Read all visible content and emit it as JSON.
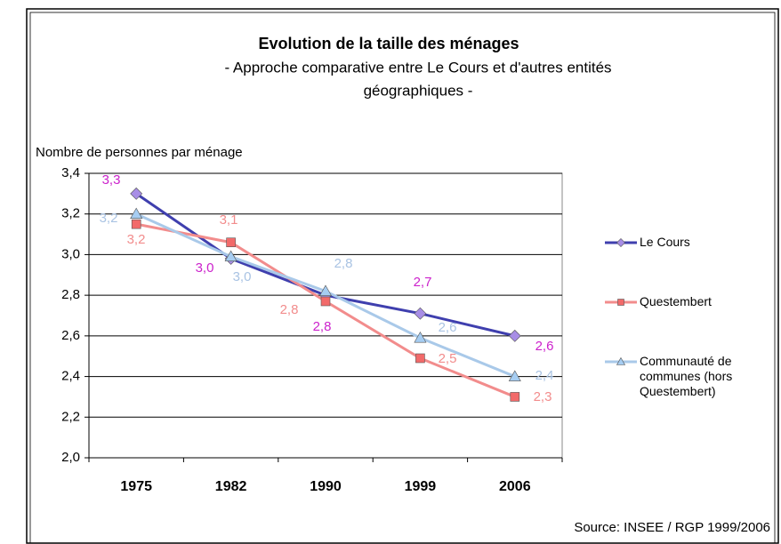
{
  "chart_data": {
    "type": "line",
    "title": "Evolution de la taille des ménages",
    "subtitle": [
      "- Approche comparative entre Le Cours et d'autres entités",
      "géographiques -"
    ],
    "y_label": "Nombre de personnes par ménage",
    "source": "Source: INSEE / RGP 1999/2006",
    "categories": [
      "1975",
      "1982",
      "1990",
      "1999",
      "2006"
    ],
    "ylim": [
      2.0,
      3.4
    ],
    "yticks": [
      {
        "value": 2.0,
        "label": "2,0"
      },
      {
        "value": 2.2,
        "label": "2,2"
      },
      {
        "value": 2.4,
        "label": "2,4"
      },
      {
        "value": 2.6,
        "label": "2,6"
      },
      {
        "value": 2.8,
        "label": "2,8"
      },
      {
        "value": 3.0,
        "label": "3,0"
      },
      {
        "value": 3.2,
        "label": "3,2"
      },
      {
        "value": 3.4,
        "label": "3,4"
      }
    ],
    "grid": true,
    "legend": "right",
    "series": [
      {
        "name": "Le Cours",
        "color": "#3f3fae",
        "marker": "diamond",
        "marker_color": "#a88ee6",
        "label_color": "#cc22cc",
        "values": [
          3.3,
          2.98,
          2.8,
          2.71,
          2.6
        ],
        "value_labels": [
          "3,3",
          "3,0",
          "2,8",
          "2,7",
          "2,6"
        ]
      },
      {
        "name": "Questembert",
        "color": "#f28c8c",
        "marker": "square",
        "marker_color": "#f26a6a",
        "label_color": "#f28c8c",
        "values": [
          3.15,
          3.06,
          2.77,
          2.49,
          2.3
        ],
        "value_labels": [
          "3,2",
          "3,1",
          "2,8",
          "2,5",
          "2,3"
        ]
      },
      {
        "name": "Communauté de communes (hors Questembert)",
        "color": "#a9c9e9",
        "marker": "triangle",
        "marker_color": "#a6cdf2",
        "label_color": "#a9c3e3",
        "values": [
          3.2,
          2.99,
          2.82,
          2.59,
          2.4
        ],
        "value_labels": [
          "3,2",
          "3,0",
          "2,8",
          "2,6",
          "2,4"
        ]
      }
    ]
  }
}
